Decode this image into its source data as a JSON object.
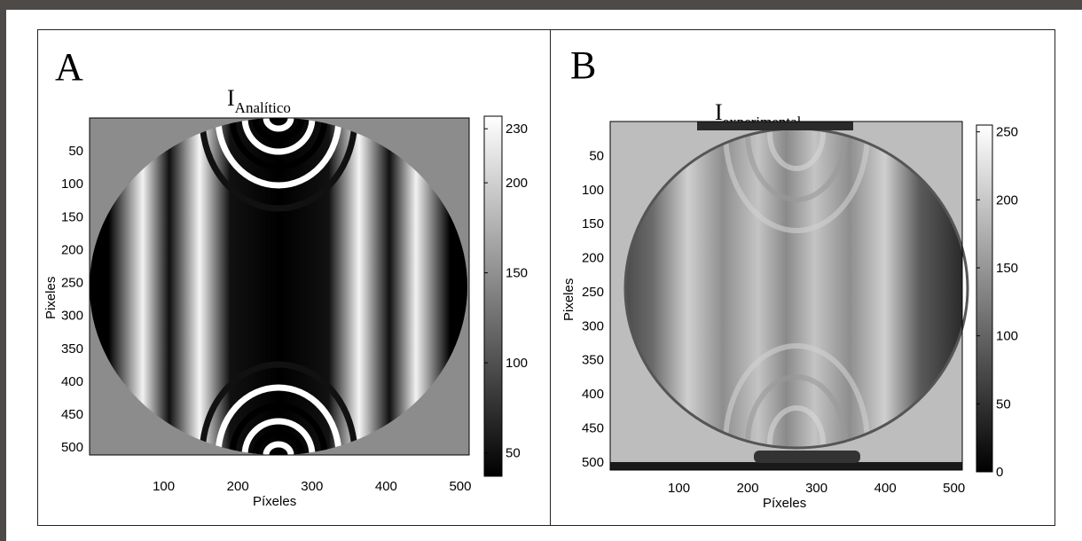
{
  "panels": {
    "a": {
      "letter": "A",
      "title_main": "I",
      "title_sub": "Analítico",
      "xlabel": "Píxeles",
      "ylabel": "Pixeles",
      "xticks": [
        "100",
        "200",
        "300",
        "400",
        "500"
      ],
      "yticks": [
        "50",
        "100",
        "150",
        "200",
        "250",
        "300",
        "350",
        "400",
        "450",
        "500"
      ],
      "colorbar_ticks": [
        "230",
        "200",
        "150",
        "100",
        "50"
      ],
      "colormap": "gray"
    },
    "b": {
      "letter": "B",
      "title_main": "I",
      "title_sub": "experimental",
      "xlabel": "Píxeles",
      "ylabel": "Pixeles",
      "xticks": [
        "100",
        "200",
        "300",
        "400",
        "500"
      ],
      "yticks": [
        "50",
        "100",
        "150",
        "200",
        "250",
        "300",
        "350",
        "400",
        "450",
        "500"
      ],
      "colorbar_ticks": [
        "250",
        "200",
        "150",
        "100",
        "50",
        "0"
      ],
      "colormap": "gray"
    }
  }
}
